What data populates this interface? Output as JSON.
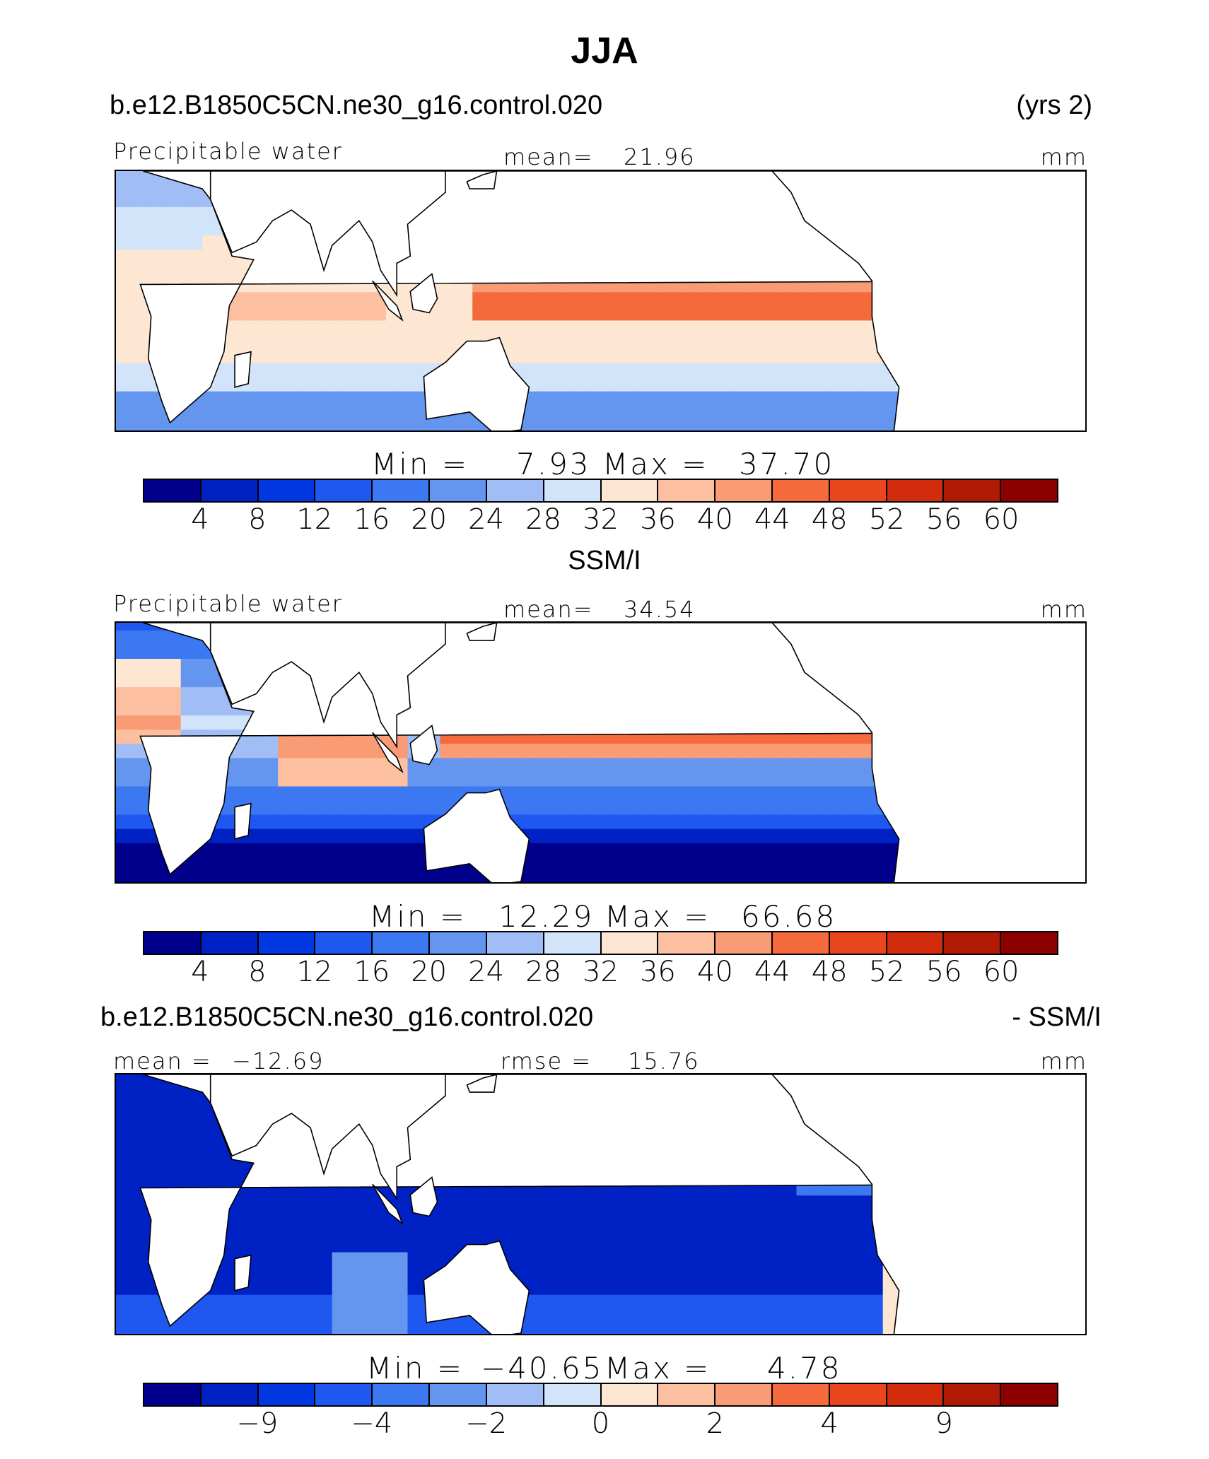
{
  "title": "JJA",
  "colors": [
    "#00008c",
    "#0022c4",
    "#0037e0",
    "#1e58f0",
    "#3c78f2",
    "#6495ef",
    "#a0bef5",
    "#d2e4fa",
    "#fde6d2",
    "#fcbfa0",
    "#f99b74",
    "#f56a3c",
    "#e9461e",
    "#d22c0c",
    "#b01a05",
    "#8c0000"
  ],
  "panel1": {
    "case_name": "b.e12.B1850C5CN.ne30_g16.control.020",
    "years": "(yrs 2)",
    "variable": "Precipitable water",
    "stat_label": "mean=",
    "stat_value": "21.96",
    "units": "mm",
    "minmax": {
      "min_label": "Min =",
      "min_value": "7.93",
      "max_label": "Max =",
      "max_value": "37.70"
    },
    "colorbar_ticks": [
      "4",
      "8",
      "12",
      "16",
      "20",
      "24",
      "28",
      "32",
      "36",
      "40",
      "44",
      "48",
      "52",
      "56",
      "60"
    ],
    "field": "model"
  },
  "panel2": {
    "case_name": "SSM/I",
    "variable": "Precipitable water",
    "stat_label": "mean=",
    "stat_value": "34.54",
    "units": "mm",
    "minmax": {
      "min_label": "Min =",
      "min_value": "12.29",
      "max_label": "Max =",
      "max_value": "66.68"
    },
    "colorbar_ticks": [
      "4",
      "8",
      "12",
      "16",
      "20",
      "24",
      "28",
      "32",
      "36",
      "40",
      "44",
      "48",
      "52",
      "56",
      "60"
    ],
    "field": "obs"
  },
  "panel3": {
    "case_name": "b.e12.B1850C5CN.ne30_g16.control.020",
    "obs_label": "- SSM/I",
    "mean_label": "mean =",
    "mean_value": "−12.69",
    "rmse_label": "rmse =",
    "rmse_value": "15.76",
    "units": "mm",
    "minmax": {
      "min_label": "Min =",
      "min_value": "−40.65",
      "max_label": "Max =",
      "max_value": "4.78"
    },
    "colorbar_ticks": [
      "−9",
      "−4",
      "−2",
      "0",
      "2",
      "4",
      "9"
    ],
    "field": "diff"
  }
}
